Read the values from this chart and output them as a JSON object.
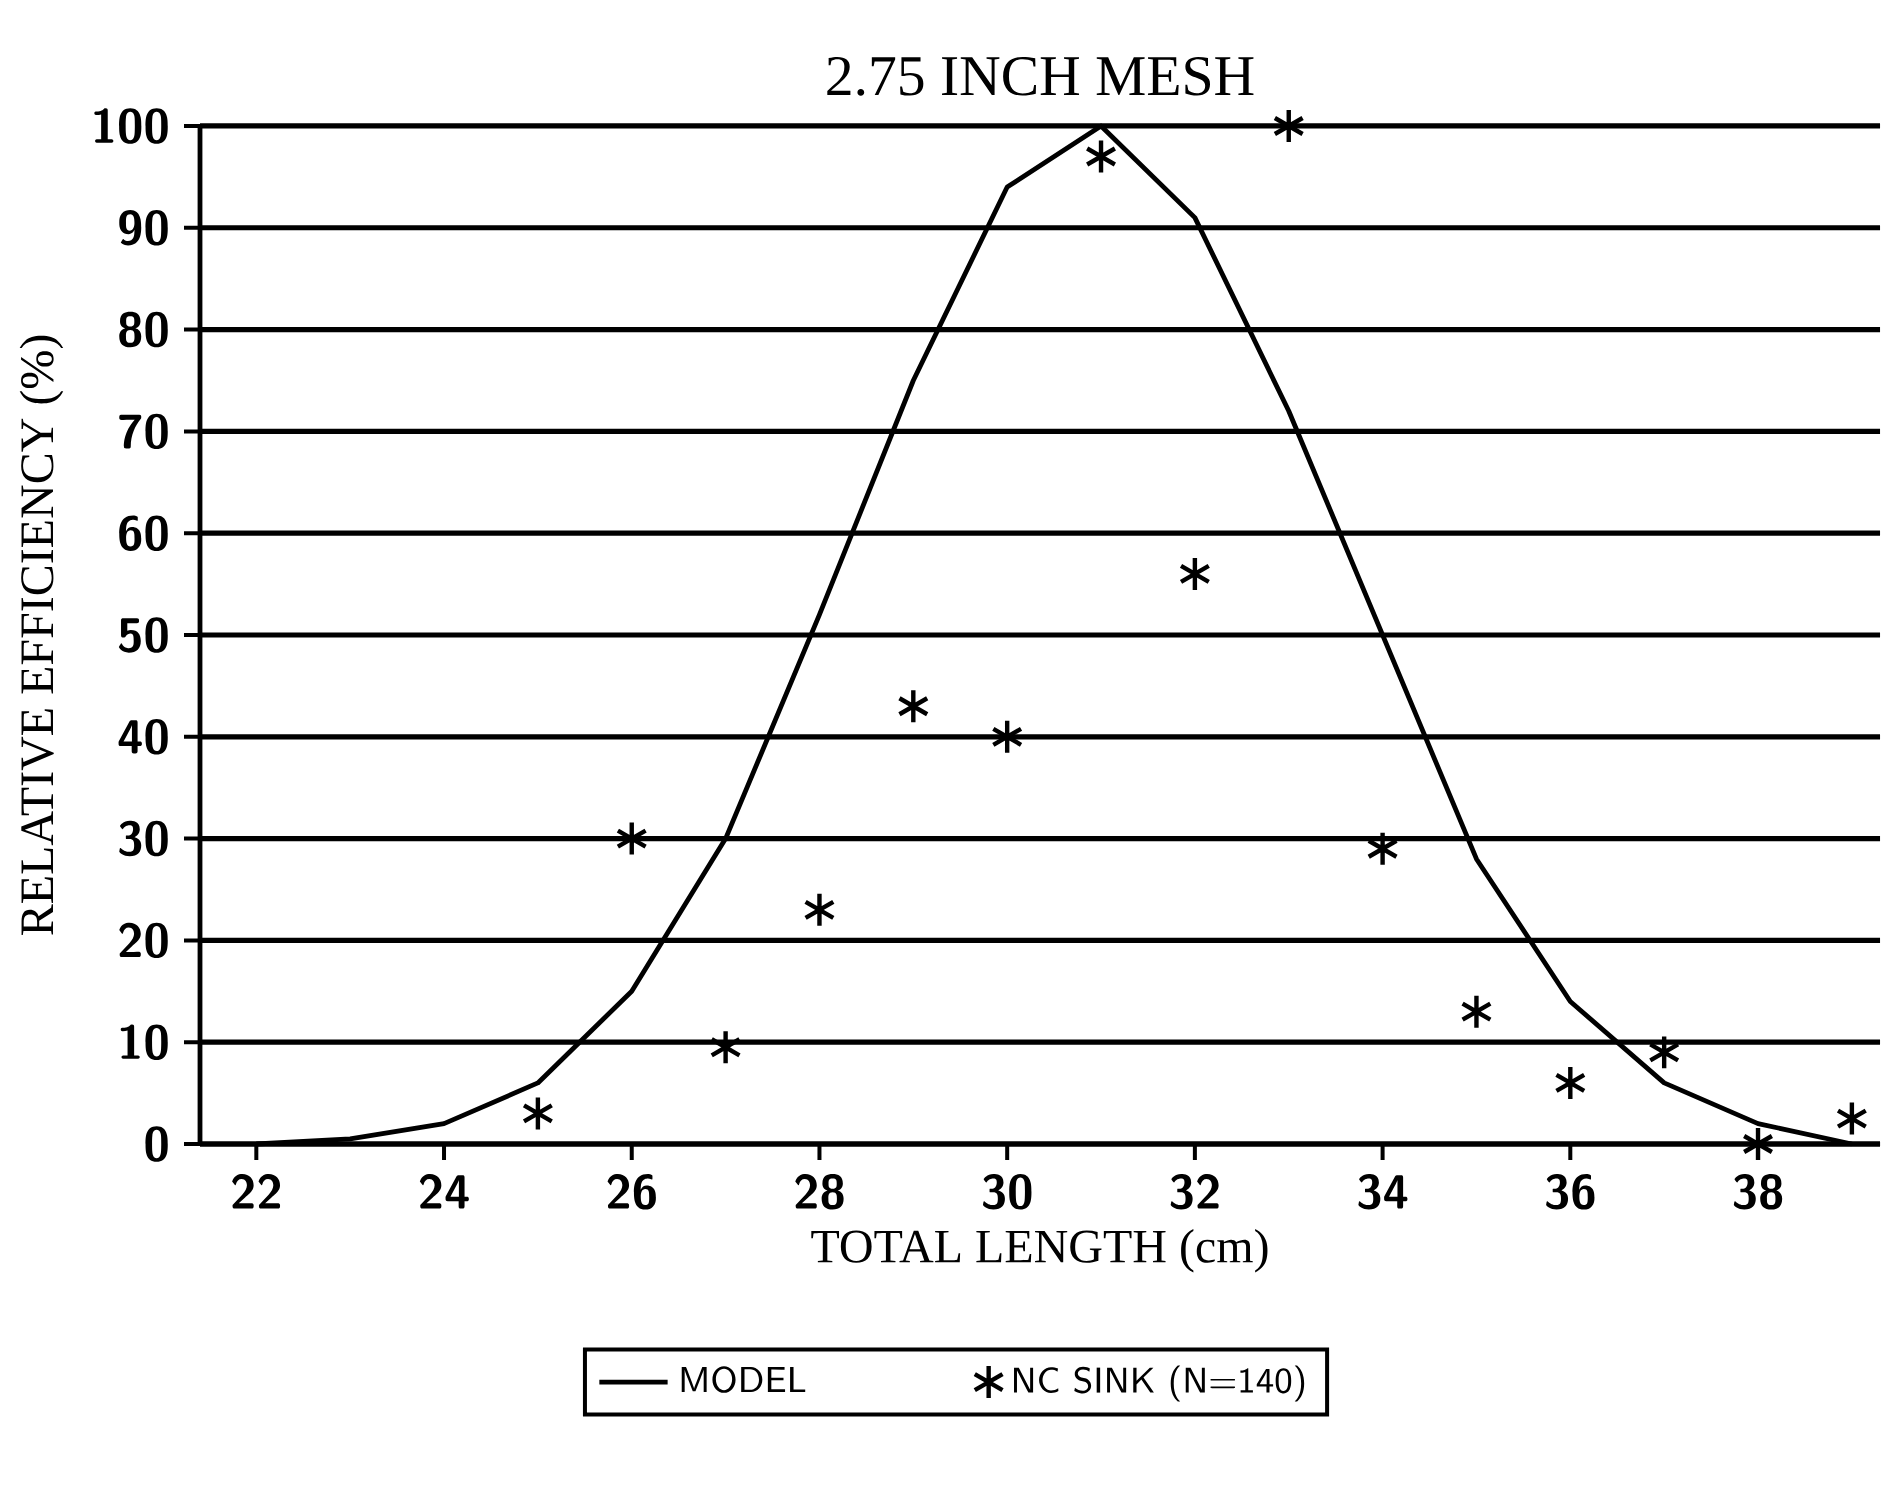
{
  "chart_data": {
    "type": "line",
    "title": "2.75 INCH MESH",
    "xlabel": "TOTAL LENGTH (cm)",
    "ylabel": "RELATIVE EFFICIENCY (%)",
    "xlim": [
      21.4,
      39.3
    ],
    "ylim": [
      0,
      100
    ],
    "xticks": [
      22,
      24,
      26,
      28,
      30,
      32,
      34,
      36,
      38
    ],
    "yticks": [
      0,
      10,
      20,
      30,
      40,
      50,
      60,
      70,
      80,
      90,
      100
    ],
    "grid": "y",
    "legend": "bottom",
    "series": [
      {
        "name": "MODEL",
        "color": "#000000",
        "line_style": "solid",
        "marker": "none",
        "x": [
          22,
          23,
          24,
          25,
          26,
          27,
          28,
          29,
          30,
          31,
          32,
          33,
          34,
          35,
          36,
          37,
          38,
          39
        ],
        "values": [
          0,
          0.5,
          2,
          6,
          15,
          30,
          52,
          75,
          94,
          100,
          91,
          72,
          50,
          28,
          14,
          6,
          2,
          0
        ]
      },
      {
        "name": "NC SINK (N=140)",
        "type": "scatter",
        "color": "#000000",
        "marker": "cross",
        "x": [
          25,
          26,
          27,
          28,
          29,
          30,
          31,
          32,
          33,
          34,
          35,
          36,
          37,
          38,
          39
        ],
        "values": [
          3,
          30,
          9.5,
          23,
          43,
          40,
          97,
          56,
          100,
          29,
          13,
          6,
          9,
          0,
          2.5
        ]
      }
    ]
  }
}
